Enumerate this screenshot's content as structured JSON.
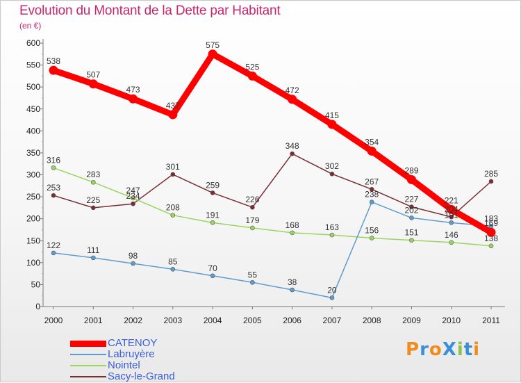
{
  "chart_data": {
    "type": "line",
    "title": "Evolution du Montant de la Dette par Habitant",
    "unit": "(en €)",
    "x": [
      "2000",
      "2001",
      "2002",
      "2003",
      "2004",
      "2005",
      "2006",
      "2007",
      "2008",
      "2009",
      "2010",
      "2011"
    ],
    "ylim": [
      0,
      600
    ],
    "yticks": [
      0,
      50,
      100,
      150,
      200,
      250,
      300,
      350,
      400,
      450,
      500,
      550,
      600
    ],
    "grid": false,
    "legend_position": "bottom-left",
    "series": [
      {
        "name": "CATENOY",
        "color": "#ff0000",
        "values": [
          538,
          507,
          473,
          437,
          575,
          525,
          472,
          415,
          354,
          289,
          221,
          169
        ]
      },
      {
        "name": "Labruyère",
        "color": "#5e9bd1",
        "values": [
          122,
          111,
          98,
          85,
          70,
          55,
          38,
          20,
          238,
          202,
          191,
          183
        ]
      },
      {
        "name": "Nointel",
        "color": "#9ad55e",
        "values": [
          316,
          283,
          247,
          208,
          191,
          179,
          168,
          163,
          156,
          151,
          146,
          138
        ]
      },
      {
        "name": "Sacy-le-Grand",
        "color": "#7a2c33",
        "values": [
          253,
          225,
          234,
          301,
          259,
          226,
          348,
          302,
          267,
          227,
          204,
          285
        ]
      }
    ]
  },
  "logo": {
    "text": "ProXiti",
    "letters": [
      "P",
      "r",
      "o",
      "X",
      "i",
      "t",
      "i"
    ],
    "colors": [
      "#f08c1e",
      "#3a8fd8",
      "#f08c1e",
      "#3a8fd8",
      "#8bc34a",
      "#3a8fd8",
      "#f08c1e"
    ]
  }
}
